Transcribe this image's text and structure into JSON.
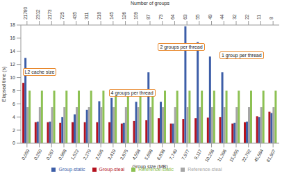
{
  "chart_data": {
    "type": "bar",
    "x_label": "Group size (MB)",
    "y_label": "Elapsed time (s)",
    "categories": [
      "0,059",
      "0,250",
      "0,267",
      "0,968",
      "1,522",
      "2,279",
      "2,595",
      "3,419",
      "3,875",
      "4,558",
      "5,698",
      "6,838",
      "7,749",
      "7,977",
      "9,117",
      "10,256",
      "11,396",
      "15,955",
      "22,792",
      "45,584",
      "61,907"
    ],
    "top_axis": {
      "label": "Number of groups",
      "categories": [
        21780,
        2312,
        2173,
        725,
        435,
        311,
        218,
        145,
        126,
        109,
        87,
        73,
        64,
        63,
        55,
        49,
        44,
        32,
        22,
        11,
        8
      ]
    },
    "series": [
      {
        "name": "Group-steal",
        "color": "#b3121f",
        "values": [
          9.2,
          3.2,
          3.2,
          3.1,
          3.2,
          3.2,
          3.2,
          3.2,
          3.0,
          3.4,
          3.5,
          3.8,
          3.0,
          3.7,
          3.8,
          3.9,
          4.0,
          3.0,
          3.2,
          4.1,
          4.8
        ]
      },
      {
        "name": "Group-static",
        "color": "#3d5ea8",
        "values": [
          13.0,
          3.3,
          3.3,
          4.0,
          4.4,
          5.1,
          6.4,
          6.9,
          3.1,
          6.3,
          10.8,
          6.3,
          3.0,
          17.8,
          15.4,
          13.2,
          10.8,
          3.1,
          3.3,
          4.0,
          4.6
        ]
      },
      {
        "name": "Reference-steal",
        "color": "#a6a6a6",
        "values": [
          5.5,
          5.5,
          5.5,
          5.5,
          5.5,
          5.5,
          5.5,
          5.5,
          5.5,
          5.5,
          5.5,
          5.5,
          5.5,
          5.5,
          5.5,
          5.5,
          5.5,
          5.5,
          5.5,
          5.5,
          5.5
        ]
      },
      {
        "name": "Reference-static",
        "color": "#8dc153",
        "values": [
          8.0,
          8.0,
          8.0,
          8.0,
          8.0,
          8.0,
          8.0,
          8.0,
          8.0,
          8.0,
          8.0,
          8.0,
          8.0,
          8.0,
          8.0,
          8.0,
          8.0,
          8.0,
          8.0,
          8.0,
          8.0
        ]
      }
    ],
    "ylim": [
      0,
      18
    ],
    "yticks": [
      0,
      2,
      4,
      6,
      8,
      10,
      12,
      14,
      16,
      18
    ],
    "grid": false,
    "legend": "bottom",
    "annotations": [
      {
        "text": "L2 cache size",
        "category": "0,250"
      },
      {
        "text": "4 groups per thread",
        "category": "3,875"
      },
      {
        "text": "2 groups per thread",
        "category": "7,749"
      },
      {
        "text": "1 group per thread",
        "category": "15,955"
      }
    ]
  }
}
